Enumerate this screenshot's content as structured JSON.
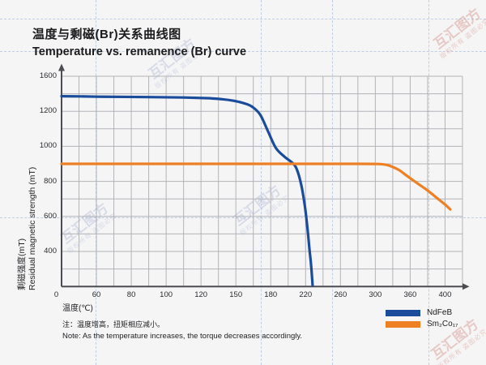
{
  "chart_data": {
    "type": "line",
    "title_zh": "温度与剩磁(Br)关系曲线图",
    "title_en": "Temperature vs. remanence (Br) curve",
    "xlabel": "温度(℃)",
    "ylabel_zh": "剩磁强度(mT)",
    "ylabel_en": "Residual magnetic strength (mT)",
    "x_tick_labels": [
      0,
      60,
      80,
      100,
      120,
      150,
      180,
      220,
      260,
      300,
      360,
      400
    ],
    "y_tick_labels": [
      1600,
      1200,
      1000,
      800,
      600,
      400
    ],
    "y_axis_values_desc": [
      1600,
      1200,
      1000,
      800,
      600,
      400,
      0
    ],
    "origin_label": "0",
    "axis_note": "ticks are non-uniform in value but equally spaced; minor gridline between each pair of ticks",
    "grid": true,
    "series": [
      {
        "name": "NdFeB",
        "color": "#1b4c9c",
        "points": [
          [
            0,
            1372
          ],
          [
            30,
            1370
          ],
          [
            60,
            1367
          ],
          [
            90,
            1362
          ],
          [
            110,
            1357
          ],
          [
            125,
            1350
          ],
          [
            138,
            1338
          ],
          [
            148,
            1320
          ],
          [
            157,
            1292
          ],
          [
            164,
            1252
          ],
          [
            171,
            1180
          ],
          [
            178,
            1080
          ],
          [
            186,
            990
          ],
          [
            196,
            940
          ],
          [
            205,
            905
          ],
          [
            210,
            868
          ],
          [
            215,
            780
          ],
          [
            219,
            665
          ],
          [
            222,
            540
          ],
          [
            224.5,
            410
          ],
          [
            226,
            280
          ],
          [
            227.3,
            120
          ],
          [
            228,
            15
          ]
        ]
      },
      {
        "name": "Sm2Co17",
        "color": "#ee7f23",
        "points": [
          [
            0,
            900
          ],
          [
            40,
            900
          ],
          [
            80,
            900
          ],
          [
            120,
            900
          ],
          [
            160,
            900
          ],
          [
            200,
            900
          ],
          [
            240,
            900
          ],
          [
            280,
            900
          ],
          [
            305,
            899
          ],
          [
            318,
            895
          ],
          [
            330,
            882
          ],
          [
            342,
            862
          ],
          [
            355,
            830
          ],
          [
            368,
            790
          ],
          [
            380,
            748
          ],
          [
            392,
            700
          ],
          [
            400,
            668
          ],
          [
            406,
            640
          ]
        ]
      }
    ],
    "legend": {
      "position": "bottom-right",
      "items": [
        {
          "label": "NdFeB",
          "color": "#1b4c9c"
        },
        {
          "label": "Sm₂Co₁₇",
          "color": "#ee7f23"
        }
      ]
    }
  },
  "notes": {
    "zh": "注：温度增高，扭矩相应减小。",
    "en": "Note: As the temperature increases, the torque decreases accordingly."
  },
  "watermark": {
    "brand": "互汇图方",
    "claim": "版权所有 盗图必究"
  },
  "colors": {
    "background": "#f5f5f6",
    "grid": "#b4b4b8",
    "axis": "#4c4c52",
    "text": "#1b1b1d"
  }
}
